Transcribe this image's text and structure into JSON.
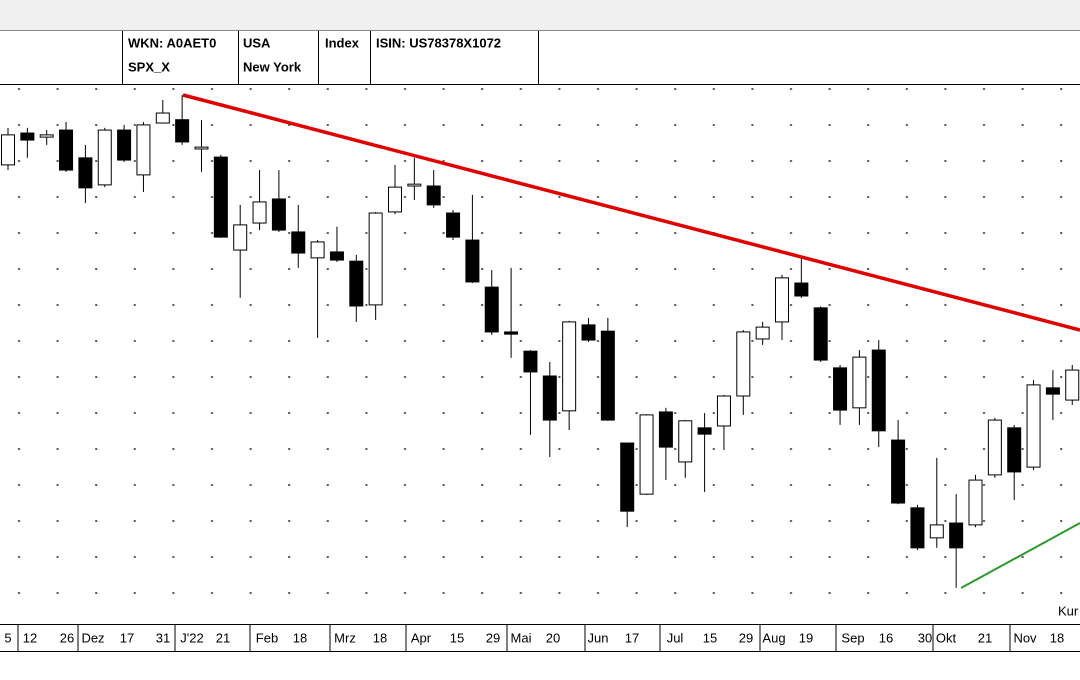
{
  "header": {
    "cells": [
      [
        "WKN: A0AET0",
        "SPX_X"
      ],
      [
        "USA",
        "New York"
      ],
      [
        "Index"
      ],
      [
        "ISIN: US78378X1072"
      ]
    ]
  },
  "chart_data": {
    "type": "candlestick",
    "open": [
      4627,
      4713,
      4702,
      4721,
      4646,
      4573,
      4721,
      4600,
      4740,
      4749,
      4670,
      4648,
      4397,
      4470,
      4535,
      4446,
      4376,
      4392,
      4367,
      4249,
      4500,
      4570,
      4570,
      4497,
      4424,
      4297,
      4176,
      4124,
      4057,
      3963,
      4195,
      4178,
      3876,
      3738,
      3960,
      3825,
      3917,
      3922,
      4003,
      4157,
      4203,
      4308,
      4241,
      4079,
      3971,
      4127,
      3884,
      3701,
      3620,
      3660,
      3655,
      3790,
      3917,
      3811,
      4025,
      3992
    ],
    "high": [
      4727,
      4727,
      4721,
      4743,
      4681,
      4727,
      4735,
      4743,
      4802,
      4816,
      4748,
      4654,
      4519,
      4613,
      4613,
      4519,
      4424,
      4460,
      4384,
      4500,
      4627,
      4646,
      4613,
      4505,
      4546,
      4343,
      4349,
      4127,
      4095,
      4206,
      4214,
      4214,
      3876,
      3954,
      3971,
      3938,
      3957,
      4006,
      4181,
      4203,
      4330,
      4376,
      4245,
      4087,
      4127,
      4154,
      3938,
      3709,
      3836,
      3738,
      3790,
      3944,
      3925,
      4046,
      4073,
      4087
    ],
    "low": [
      4613,
      4646,
      4681,
      4608,
      4524,
      4567,
      4635,
      4554,
      4740,
      4681,
      4608,
      4430,
      4268,
      4451,
      4446,
      4349,
      4160,
      4365,
      4203,
      4208,
      4494,
      4532,
      4511,
      4424,
      4308,
      4168,
      4106,
      3898,
      3838,
      3911,
      4149,
      3936,
      3649,
      3736,
      3776,
      3782,
      3744,
      3857,
      3952,
      4141,
      4154,
      4268,
      4095,
      3925,
      3925,
      3865,
      3711,
      3587,
      3593,
      3485,
      3649,
      3782,
      3722,
      3803,
      3938,
      3979
    ],
    "close": [
      4708,
      4694,
      4708,
      4613,
      4565,
      4721,
      4640,
      4735,
      4767,
      4689,
      4675,
      4432,
      4465,
      4527,
      4451,
      4389,
      4419,
      4370,
      4246,
      4497,
      4567,
      4575,
      4519,
      4432,
      4311,
      4176,
      4170,
      4068,
      3938,
      4203,
      4154,
      3938,
      3692,
      3952,
      3865,
      3936,
      3900,
      4003,
      4176,
      4189,
      4322,
      4273,
      4100,
      3965,
      4108,
      3909,
      3714,
      3593,
      3655,
      3593,
      3776,
      3938,
      3798,
      4033,
      4008,
      4073
    ],
    "color_up": "#ffffff",
    "color_down": "#000000",
    "ylim": [
      3400,
      4840
    ],
    "x_labels": [
      "5",
      "12",
      "26",
      "Dez",
      "17",
      "31",
      "J'22",
      "21",
      "Feb",
      "18",
      "Mrz",
      "18",
      "Apr",
      "15",
      "29",
      "Mai",
      "20",
      "Jun",
      "17",
      "Jul",
      "15",
      "29",
      "Aug",
      "19",
      "Sep",
      "16",
      "30",
      "Okt",
      "21",
      "Nov",
      "18"
    ],
    "annotation": "Kur"
  }
}
